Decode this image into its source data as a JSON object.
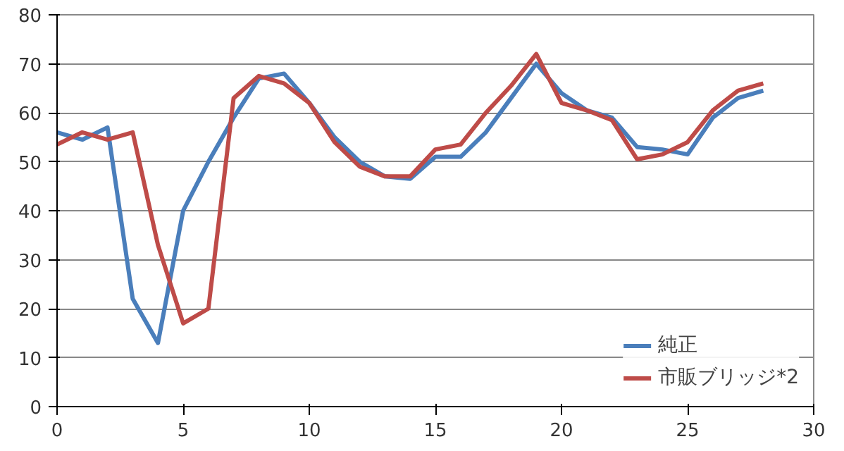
{
  "chart_data": {
    "type": "line",
    "x": [
      0,
      1,
      2,
      3,
      4,
      5,
      6,
      7,
      8,
      9,
      10,
      11,
      12,
      13,
      14,
      15,
      16,
      17,
      18,
      19,
      20,
      21,
      22,
      23,
      24,
      25,
      26,
      27,
      28
    ],
    "series": [
      {
        "name": "純正",
        "color": "#4a7ebb",
        "values": [
          56,
          54.5,
          57,
          22,
          13,
          40,
          50,
          59,
          67,
          68,
          62,
          55,
          50,
          47,
          46.5,
          51,
          51,
          56,
          63,
          70,
          64,
          60.5,
          59,
          53,
          52.5,
          51.5,
          59,
          63,
          64.5
        ]
      },
      {
        "name": "市販ブリッジ*2",
        "color": "#be4b48",
        "values": [
          53.5,
          56,
          54.5,
          56,
          33,
          17,
          20,
          63,
          67.5,
          66,
          62,
          54,
          49,
          47,
          47,
          52.5,
          53.5,
          60,
          65.5,
          72,
          62,
          60.5,
          58.5,
          50.5,
          51.5,
          54,
          60.5,
          64.5,
          66
        ]
      }
    ],
    "xlim": [
      0,
      30
    ],
    "xticks": [
      0,
      5,
      10,
      15,
      20,
      25,
      30
    ],
    "ylim": [
      0,
      80
    ],
    "yticks": [
      0,
      10,
      20,
      30,
      40,
      50,
      60,
      70,
      80
    ],
    "grid": "y",
    "legend": "bottom right",
    "marker": "none",
    "line_style": "solid"
  }
}
